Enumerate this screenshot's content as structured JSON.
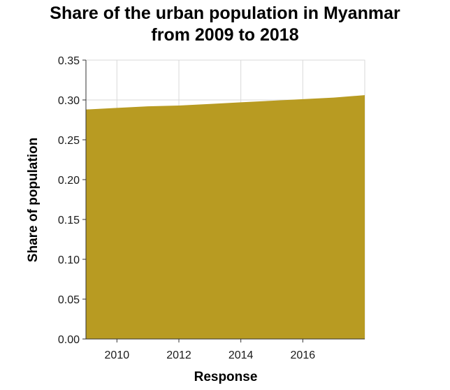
{
  "chart_data": {
    "type": "area",
    "title_lines": [
      "Share of the urban population in Myanmar",
      "from 2009 to 2018"
    ],
    "xlabel": "Response",
    "ylabel": "Share of population",
    "x": [
      2009,
      2010,
      2011,
      2012,
      2013,
      2014,
      2015,
      2016,
      2017,
      2018
    ],
    "series": [
      {
        "values": [
          0.288,
          0.29,
          0.292,
          0.293,
          0.295,
          0.297,
          0.299,
          0.301,
          0.303,
          0.306
        ],
        "color": "#b89b22"
      }
    ],
    "xlim": [
      2009,
      2018
    ],
    "ylim": [
      0,
      0.35
    ],
    "xticks": [
      2010,
      2012,
      2014,
      2016
    ],
    "yticks": [
      0.0,
      0.05,
      0.1,
      0.15,
      0.2,
      0.25,
      0.3,
      0.35
    ],
    "grid": true,
    "legend": "none"
  }
}
